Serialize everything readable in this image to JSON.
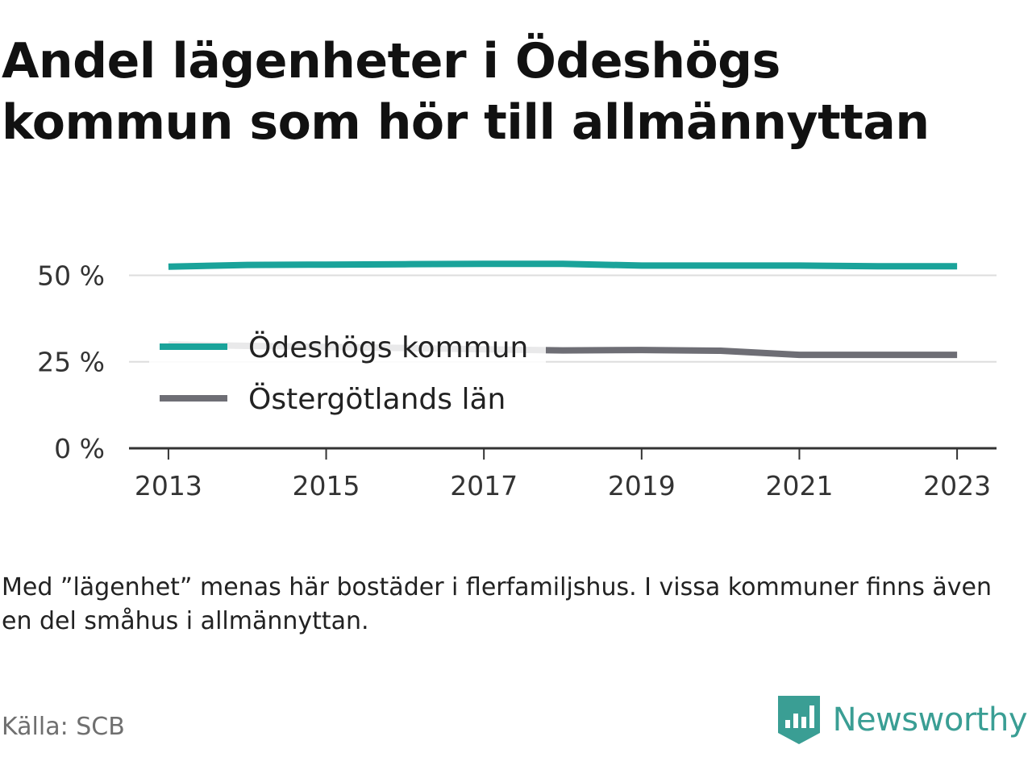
{
  "title": "Andel lägenheter i Ödeshögs kommun som hör till allmännyttan",
  "note": "Med ”lägenhet” menas här bostäder i flerfamiljshus. I vissa kommuner finns även en del småhus i allmännyttan.",
  "source": "Källa: SCB",
  "brand": {
    "name": "Newsworthy",
    "logo_icon": "newsworthy-chart-badge-icon",
    "color": "#3a9e94"
  },
  "chart_data": {
    "type": "line",
    "x": [
      2013,
      2014,
      2015,
      2016,
      2017,
      2018,
      2019,
      2020,
      2021,
      2022,
      2023
    ],
    "x_tick_labels": [
      "2013",
      "2015",
      "2017",
      "2019",
      "2021",
      "2023"
    ],
    "y_tick_labels": [
      "0 %",
      "25 %",
      "50 %"
    ],
    "y_ticks": [
      0,
      25,
      50
    ],
    "ylim": [
      0,
      55
    ],
    "xlim": [
      2012.5,
      2023.5
    ],
    "grid": true,
    "legend_position": "left-inside",
    "series": [
      {
        "name": "Ödeshögs kommun",
        "color": "#1aa39a",
        "values": [
          52.5,
          53.0,
          53.1,
          53.2,
          53.3,
          53.3,
          52.8,
          52.8,
          52.8,
          52.6,
          52.6
        ]
      },
      {
        "name": "Östergötlands län",
        "color": "#6e6e75",
        "values": [
          30.0,
          29.6,
          29.3,
          29.0,
          28.6,
          28.3,
          28.4,
          28.2,
          27.0,
          27.0,
          27.0
        ]
      }
    ]
  }
}
